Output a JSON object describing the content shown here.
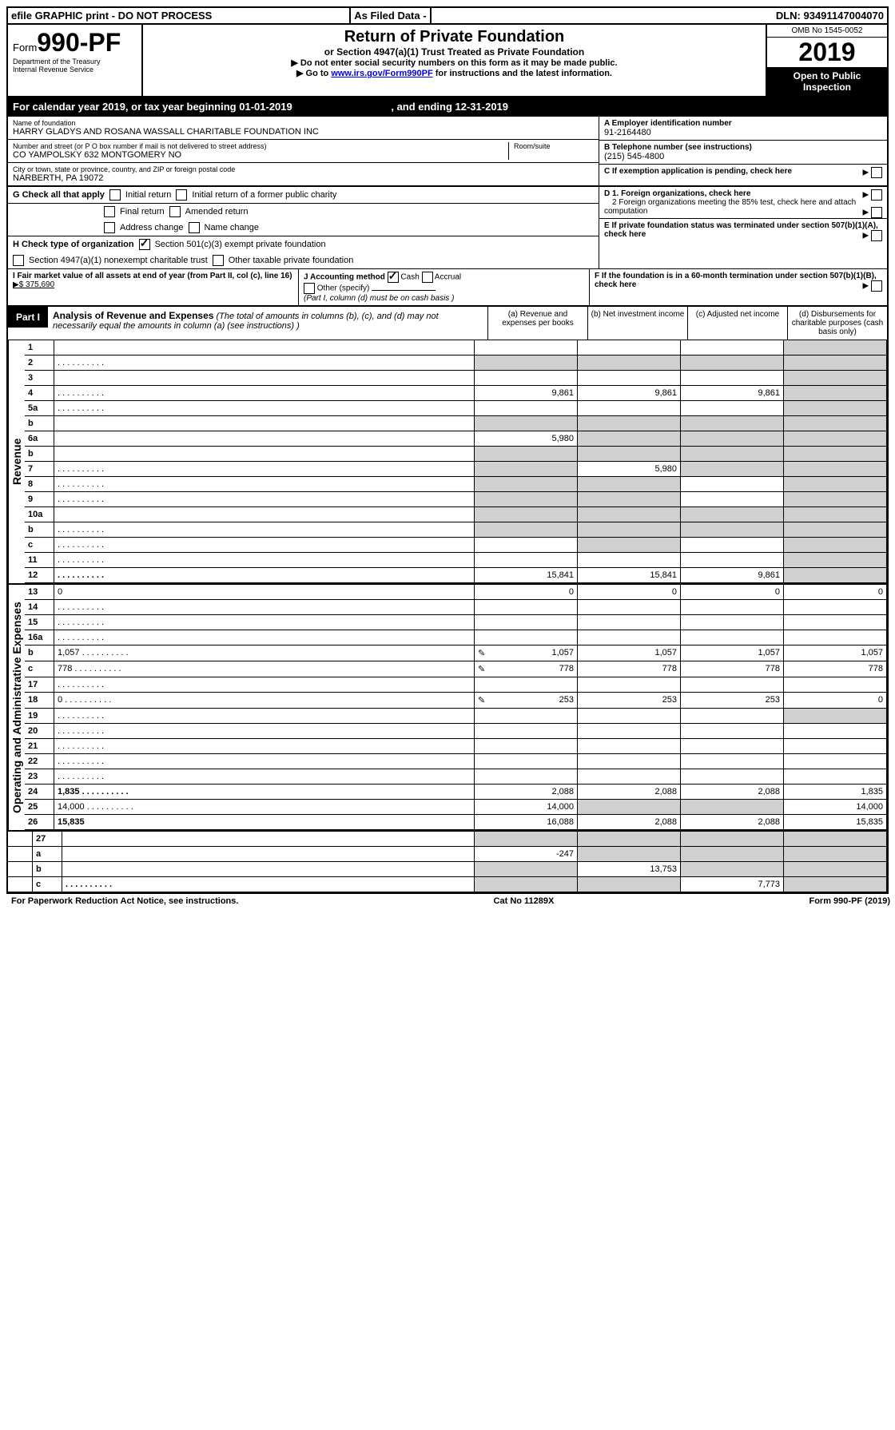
{
  "top": {
    "efile": "efile GRAPHIC print - DO NOT PROCESS",
    "asfiled": "As Filed Data -",
    "dln": "DLN: 93491147004070"
  },
  "header": {
    "form_prefix": "Form",
    "form_number": "990-PF",
    "dept1": "Department of the Treasury",
    "dept2": "Internal Revenue Service",
    "title": "Return of Private Foundation",
    "subtitle": "or Section 4947(a)(1) Trust Treated as Private Foundation",
    "instr1": "▶ Do not enter social security numbers on this form as it may be made public.",
    "instr2_pre": "▶ Go to ",
    "instr2_link": "www.irs.gov/Form990PF",
    "instr2_post": " for instructions and the latest information.",
    "omb": "OMB No 1545-0052",
    "year": "2019",
    "open": "Open to Public Inspection"
  },
  "calyear": {
    "pre": "For calendar year 2019, or tax year beginning ",
    "begin": "01-01-2019",
    "mid": " , and ending ",
    "end": "12-31-2019"
  },
  "info": {
    "name_label": "Name of foundation",
    "name": "HARRY GLADYS AND ROSANA WASSALL CHARITABLE FOUNDATION INC",
    "addr_label": "Number and street (or P O  box number if mail is not delivered to street address)",
    "addr": "CO YAMPOLSKY 632 MONTGOMERY NO",
    "room_label": "Room/suite",
    "city_label": "City or town, state or province, country, and ZIP or foreign postal code",
    "city": "NARBERTH, PA 19072",
    "a_label": "A Employer identification number",
    "a_val": "91-2164480",
    "b_label": "B Telephone number (see instructions)",
    "b_val": "(215) 545-4800",
    "c_label": "C If exemption application is pending, check here"
  },
  "g": {
    "label": "G Check all that apply",
    "opts": [
      "Initial return",
      "Initial return of a former public charity",
      "Final return",
      "Amended return",
      "Address change",
      "Name change"
    ]
  },
  "h": {
    "label": "H Check type of organization",
    "opt1": "Section 501(c)(3) exempt private foundation",
    "opt2": "Section 4947(a)(1) nonexempt charitable trust",
    "opt3": "Other taxable private foundation"
  },
  "d": {
    "d1": "D 1. Foreign organizations, check here",
    "d2": "2 Foreign organizations meeting the 85% test, check here and attach computation"
  },
  "e": "E  If private foundation status was terminated under section 507(b)(1)(A), check here",
  "i": {
    "label": "I Fair market value of all assets at end of year (from Part II, col  (c), line 16)",
    "val": "▶$  375,690"
  },
  "j": {
    "label": "J Accounting method",
    "cash": "Cash",
    "accrual": "Accrual",
    "other": "Other (specify)",
    "note": "(Part I, column (d) must be on cash basis )"
  },
  "f": "F  If the foundation is in a 60-month termination under section 507(b)(1)(B), check here",
  "part1": {
    "label": "Part I",
    "title": "Analysis of Revenue and Expenses",
    "title_note": " (The total of amounts in columns (b), (c), and (d) may not necessarily equal the amounts in column (a) (see instructions) )",
    "col_a": "(a)  Revenue and expenses per books",
    "col_b": "(b) Net investment income",
    "col_c": "(c) Adjusted net income",
    "col_d": "(d) Disbursements for charitable purposes (cash basis only)"
  },
  "side_rev": "Revenue",
  "side_exp": "Operating and Administrative Expenses",
  "rows": [
    {
      "n": "1",
      "d": "",
      "a": "",
      "b": "",
      "c": "",
      "d_shade": true
    },
    {
      "n": "2",
      "d": "",
      "dots": true,
      "a": "",
      "b": "",
      "c": "",
      "a_shade": true,
      "b_shade": true,
      "c_shade": true,
      "d_shade": true,
      "bold_not": true
    },
    {
      "n": "3",
      "d": "",
      "a": "",
      "b": "",
      "c": "",
      "d_shade": true
    },
    {
      "n": "4",
      "d": "",
      "dots": true,
      "a": "9,861",
      "b": "9,861",
      "c": "9,861",
      "d_shade": true
    },
    {
      "n": "5a",
      "d": "",
      "dots": true,
      "a": "",
      "b": "",
      "c": "",
      "d_shade": true
    },
    {
      "n": "b",
      "d": "",
      "a": "",
      "b": "",
      "c": "",
      "a_shade": true,
      "b_shade": true,
      "c_shade": true,
      "d_shade": true
    },
    {
      "n": "6a",
      "d": "",
      "a": "5,980",
      "b": "",
      "c": "",
      "b_shade": true,
      "c_shade": true,
      "d_shade": true
    },
    {
      "n": "b",
      "d": "",
      "a": "",
      "b": "",
      "c": "",
      "a_shade": true,
      "b_shade": true,
      "c_shade": true,
      "d_shade": true
    },
    {
      "n": "7",
      "d": "",
      "dots": true,
      "a": "",
      "b": "5,980",
      "c": "",
      "a_shade": true,
      "c_shade": true,
      "d_shade": true
    },
    {
      "n": "8",
      "d": "",
      "dots": true,
      "a": "",
      "b": "",
      "c": "",
      "a_shade": true,
      "b_shade": true,
      "d_shade": true
    },
    {
      "n": "9",
      "d": "",
      "dots": true,
      "a": "",
      "b": "",
      "c": "",
      "a_shade": true,
      "b_shade": true,
      "d_shade": true
    },
    {
      "n": "10a",
      "d": "",
      "a": "",
      "b": "",
      "c": "",
      "a_shade": true,
      "b_shade": true,
      "c_shade": true,
      "d_shade": true
    },
    {
      "n": "b",
      "d": "",
      "dots": true,
      "a": "",
      "b": "",
      "c": "",
      "a_shade": true,
      "b_shade": true,
      "c_shade": true,
      "d_shade": true
    },
    {
      "n": "c",
      "d": "",
      "dots": true,
      "a": "",
      "b": "",
      "c": "",
      "b_shade": true,
      "d_shade": true
    },
    {
      "n": "11",
      "d": "",
      "dots": true,
      "a": "",
      "b": "",
      "c": "",
      "d_shade": true
    },
    {
      "n": "12",
      "d": "",
      "dots": true,
      "bold": true,
      "a": "15,841",
      "b": "15,841",
      "c": "9,861",
      "d_shade": true
    }
  ],
  "exp_rows": [
    {
      "n": "13",
      "d": "0",
      "a": "0",
      "b": "0",
      "c": "0"
    },
    {
      "n": "14",
      "d": "",
      "dots": true,
      "a": "",
      "b": "",
      "c": ""
    },
    {
      "n": "15",
      "d": "",
      "dots": true,
      "a": "",
      "b": "",
      "c": ""
    },
    {
      "n": "16a",
      "d": "",
      "dots": true,
      "a": "",
      "b": "",
      "c": ""
    },
    {
      "n": "b",
      "d": "1,057",
      "dots": true,
      "icon": true,
      "a": "1,057",
      "b": "1,057",
      "c": "1,057"
    },
    {
      "n": "c",
      "d": "778",
      "dots": true,
      "icon": true,
      "a": "778",
      "b": "778",
      "c": "778"
    },
    {
      "n": "17",
      "d": "",
      "dots": true,
      "a": "",
      "b": "",
      "c": ""
    },
    {
      "n": "18",
      "d": "0",
      "dots": true,
      "icon": true,
      "a": "253",
      "b": "253",
      "c": "253"
    },
    {
      "n": "19",
      "d": "",
      "dots": true,
      "a": "",
      "b": "",
      "c": "",
      "d_shade": true
    },
    {
      "n": "20",
      "d": "",
      "dots": true,
      "a": "",
      "b": "",
      "c": ""
    },
    {
      "n": "21",
      "d": "",
      "dots": true,
      "a": "",
      "b": "",
      "c": ""
    },
    {
      "n": "22",
      "d": "",
      "dots": true,
      "a": "",
      "b": "",
      "c": ""
    },
    {
      "n": "23",
      "d": "",
      "dots": true,
      "a": "",
      "b": "",
      "c": ""
    },
    {
      "n": "24",
      "d": "1,835",
      "dots": true,
      "bold": true,
      "a": "2,088",
      "b": "2,088",
      "c": "2,088"
    },
    {
      "n": "25",
      "d": "14,000",
      "dots": true,
      "a": "14,000",
      "b": "",
      "c": "",
      "b_shade": true,
      "c_shade": true
    },
    {
      "n": "26",
      "d": "15,835",
      "bold": true,
      "a": "16,088",
      "b": "2,088",
      "c": "2,088"
    }
  ],
  "bottom_rows": [
    {
      "n": "27",
      "d": "",
      "a": "",
      "b": "",
      "c": "",
      "a_shade": true,
      "b_shade": true,
      "c_shade": true,
      "d_shade": true
    },
    {
      "n": "a",
      "d": "",
      "bold": true,
      "a": "-247",
      "b": "",
      "c": "",
      "b_shade": true,
      "c_shade": true,
      "d_shade": true
    },
    {
      "n": "b",
      "d": "",
      "bold": true,
      "a": "",
      "b": "13,753",
      "c": "",
      "a_shade": true,
      "c_shade": true,
      "d_shade": true
    },
    {
      "n": "c",
      "d": "",
      "dots": true,
      "bold": true,
      "a": "",
      "b": "",
      "c": "7,773",
      "a_shade": true,
      "b_shade": true,
      "d_shade": true
    }
  ],
  "footer": {
    "left": "For Paperwork Reduction Act Notice, see instructions.",
    "mid": "Cat  No  11289X",
    "right": "Form 990-PF (2019)"
  }
}
